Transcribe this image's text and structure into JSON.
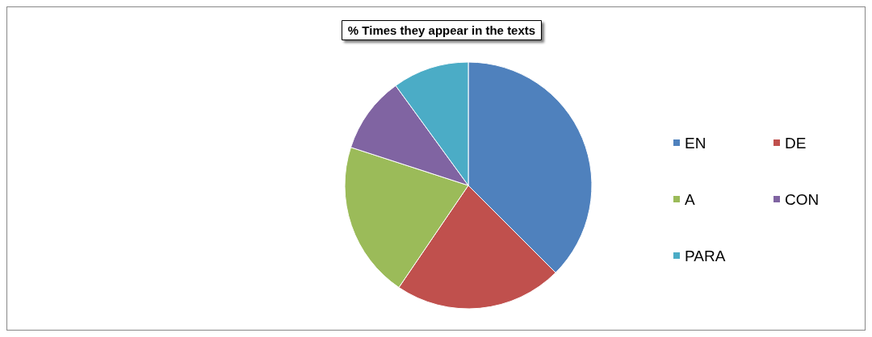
{
  "chart_data": {
    "type": "pie",
    "title": "% Times they appear in the texts",
    "categories": [
      "EN",
      "DE",
      "A",
      "CON",
      "PARA"
    ],
    "values": [
      37.5,
      22,
      20.5,
      10,
      10
    ],
    "colors": [
      "#4f81bd",
      "#c0504d",
      "#9bbb59",
      "#8064a2",
      "#4bacc6"
    ],
    "legend": "right"
  }
}
